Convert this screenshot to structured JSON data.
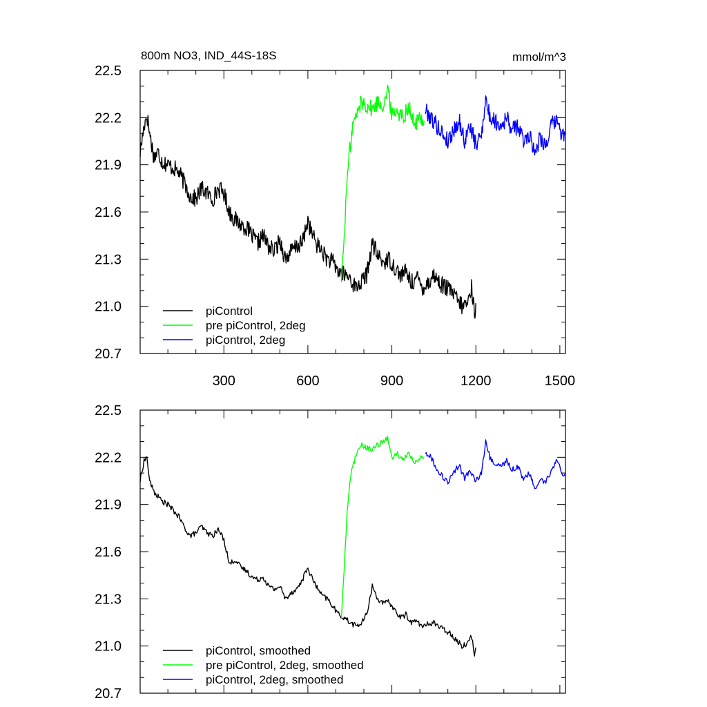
{
  "chart_data": [
    {
      "type": "line",
      "title": "800m NO3, IND_44S-18S",
      "units": "mmol/m^3",
      "xlim": [
        1,
        1520
      ],
      "ylim": [
        20.7,
        22.5
      ],
      "xticks": [
        300,
        600,
        900,
        1200,
        1500
      ],
      "yticks": [
        20.7,
        21.0,
        21.3,
        21.6,
        21.9,
        22.2,
        22.5
      ],
      "xtick_labels": [
        "300",
        "600",
        "900",
        "1200",
        "1500"
      ],
      "ytick_labels": [
        "20.7",
        "21.0",
        "21.3",
        "21.6",
        "21.9",
        "22.2",
        "22.5"
      ],
      "legend_position": "bottom-left",
      "series": [
        {
          "name": "piControl",
          "color": "#000000",
          "x": [
            1,
            15,
            25,
            35,
            50,
            65,
            80,
            100,
            120,
            140,
            160,
            180,
            200,
            220,
            240,
            260,
            280,
            300,
            320,
            340,
            360,
            380,
            400,
            420,
            440,
            460,
            480,
            500,
            520,
            540,
            560,
            580,
            600,
            610,
            630,
            650,
            670,
            690,
            710,
            730,
            750,
            770,
            790,
            810,
            830,
            850,
            870,
            890,
            910,
            930,
            950,
            970,
            990,
            1010,
            1030,
            1050,
            1070,
            1090,
            1110,
            1130,
            1150,
            1170,
            1185,
            1195,
            1200
          ],
          "y": [
            21.98,
            22.15,
            22.22,
            22.1,
            21.95,
            21.98,
            21.92,
            21.9,
            21.88,
            21.85,
            21.78,
            21.7,
            21.68,
            21.75,
            21.72,
            21.68,
            21.75,
            21.72,
            21.6,
            21.55,
            21.52,
            21.5,
            21.45,
            21.4,
            21.45,
            21.38,
            21.35,
            21.42,
            21.3,
            21.35,
            21.38,
            21.4,
            21.55,
            21.48,
            21.4,
            21.35,
            21.3,
            21.28,
            21.22,
            21.2,
            21.18,
            21.12,
            21.15,
            21.2,
            21.4,
            21.32,
            21.28,
            21.3,
            21.25,
            21.2,
            21.22,
            21.15,
            21.18,
            21.12,
            21.15,
            21.2,
            21.15,
            21.12,
            21.1,
            21.05,
            21.0,
            21.02,
            21.12,
            20.95,
            21.02
          ]
        },
        {
          "name": "pre piControl, 2deg",
          "color": "#00ff00",
          "x": [
            720,
            730,
            740,
            750,
            760,
            775,
            790,
            810,
            830,
            850,
            870,
            885,
            900,
            920,
            940,
            960,
            980,
            1000,
            1015
          ],
          "y": [
            21.18,
            21.45,
            21.8,
            22.0,
            22.15,
            22.22,
            22.3,
            22.28,
            22.25,
            22.3,
            22.28,
            22.38,
            22.22,
            22.25,
            22.2,
            22.28,
            22.15,
            22.2,
            22.18
          ]
        },
        {
          "name": "piControl, 2deg",
          "color": "#0000ff",
          "x": [
            1020,
            1040,
            1060,
            1080,
            1100,
            1120,
            1140,
            1160,
            1180,
            1200,
            1220,
            1235,
            1250,
            1270,
            1290,
            1310,
            1330,
            1350,
            1370,
            1390,
            1410,
            1430,
            1450,
            1470,
            1490,
            1510,
            1520
          ],
          "y": [
            22.25,
            22.2,
            22.15,
            22.1,
            22.05,
            22.12,
            22.18,
            22.05,
            22.15,
            22.02,
            22.1,
            22.32,
            22.2,
            22.18,
            22.15,
            22.2,
            22.12,
            22.15,
            22.05,
            22.1,
            21.98,
            22.08,
            22.02,
            22.15,
            22.18,
            22.08,
            22.1
          ]
        }
      ]
    },
    {
      "type": "line",
      "xlim": [
        1,
        1520
      ],
      "ylim": [
        20.7,
        22.5
      ],
      "xticks": [
        300,
        600,
        900,
        1200,
        1500
      ],
      "yticks": [
        20.7,
        21.0,
        21.3,
        21.6,
        21.9,
        22.2,
        22.5
      ],
      "ytick_labels": [
        "20.7",
        "21.0",
        "21.3",
        "21.6",
        "21.9",
        "22.2",
        "22.5"
      ],
      "legend_position": "bottom-left",
      "series": [
        {
          "name": "piControl, smoothed",
          "color": "#000000",
          "x": [
            1,
            15,
            25,
            35,
            50,
            65,
            80,
            100,
            120,
            140,
            160,
            180,
            200,
            220,
            240,
            260,
            280,
            300,
            320,
            340,
            360,
            380,
            400,
            420,
            440,
            460,
            480,
            500,
            520,
            540,
            560,
            580,
            600,
            610,
            630,
            650,
            670,
            690,
            710,
            730,
            750,
            770,
            790,
            810,
            830,
            850,
            870,
            890,
            910,
            930,
            950,
            970,
            990,
            1010,
            1030,
            1050,
            1070,
            1090,
            1110,
            1130,
            1150,
            1170,
            1185,
            1195,
            1200
          ],
          "y": [
            22.05,
            22.18,
            22.2,
            22.05,
            21.98,
            21.95,
            21.92,
            21.9,
            21.86,
            21.82,
            21.75,
            21.7,
            21.72,
            21.76,
            21.72,
            21.7,
            21.74,
            21.68,
            21.52,
            21.55,
            21.5,
            21.48,
            21.44,
            21.42,
            21.44,
            21.38,
            21.36,
            21.38,
            21.3,
            21.34,
            21.36,
            21.42,
            21.5,
            21.45,
            21.38,
            21.32,
            21.3,
            21.25,
            21.2,
            21.18,
            21.15,
            21.13,
            21.14,
            21.2,
            21.38,
            21.3,
            21.27,
            21.28,
            21.23,
            21.18,
            21.2,
            21.15,
            21.16,
            21.12,
            21.14,
            21.15,
            21.12,
            21.1,
            21.08,
            21.04,
            21.0,
            21.02,
            21.06,
            20.95,
            20.99
          ]
        },
        {
          "name": "pre piControl, 2deg, smoothed",
          "color": "#00ff00",
          "x": [
            720,
            730,
            740,
            750,
            760,
            775,
            790,
            810,
            830,
            850,
            870,
            885,
            900,
            920,
            940,
            960,
            980,
            1000,
            1015
          ],
          "y": [
            21.18,
            21.5,
            21.85,
            22.05,
            22.15,
            22.22,
            22.28,
            22.26,
            22.25,
            22.28,
            22.3,
            22.32,
            22.2,
            22.22,
            22.18,
            22.24,
            22.16,
            22.2,
            22.19
          ]
        },
        {
          "name": "piControl, 2deg, smoothed",
          "color": "#0000ff",
          "x": [
            1020,
            1040,
            1060,
            1080,
            1100,
            1120,
            1140,
            1160,
            1180,
            1200,
            1220,
            1235,
            1250,
            1270,
            1290,
            1310,
            1330,
            1350,
            1370,
            1390,
            1410,
            1430,
            1450,
            1470,
            1490,
            1510,
            1520
          ],
          "y": [
            22.23,
            22.2,
            22.13,
            22.08,
            22.04,
            22.1,
            22.15,
            22.06,
            22.12,
            22.05,
            22.1,
            22.3,
            22.2,
            22.16,
            22.14,
            22.18,
            22.12,
            22.14,
            22.06,
            22.1,
            22.0,
            22.06,
            22.04,
            22.12,
            22.18,
            22.08,
            22.1
          ]
        }
      ]
    }
  ]
}
